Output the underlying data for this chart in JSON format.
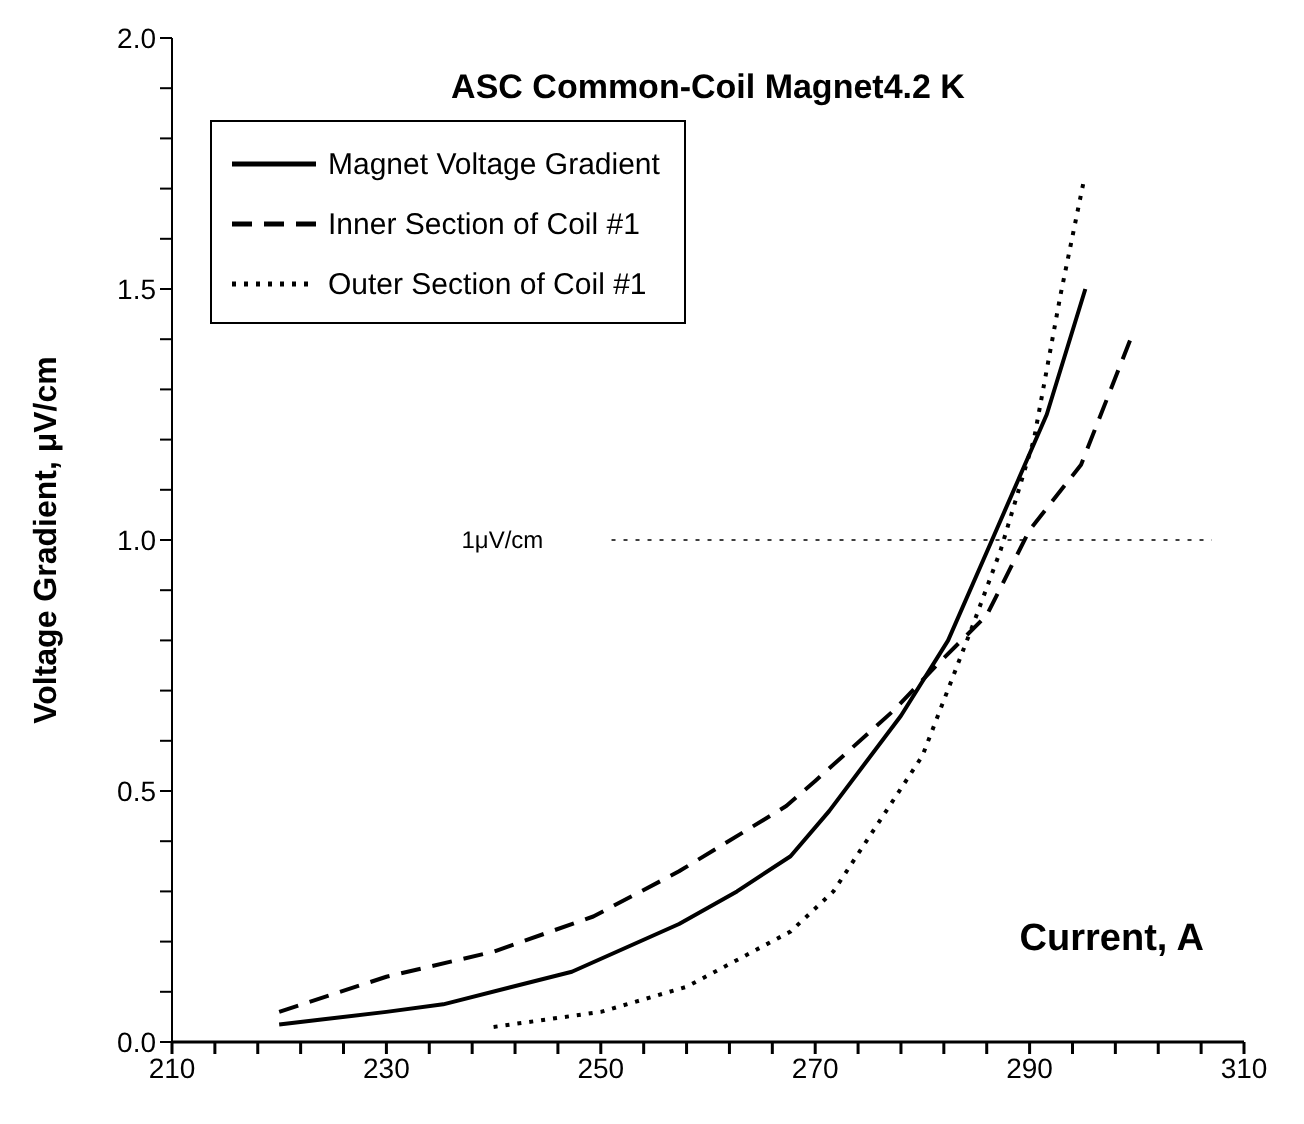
{
  "chart_data": {
    "type": "line",
    "title": "ASC Common-Coil Magnet4.2 K",
    "xlabel": "Current, A",
    "ylabel": "Voltage Gradient, μV/cm",
    "xlim": [
      210,
      310
    ],
    "xticks": [
      210,
      {
        "value": 214,
        "label": null
      },
      {
        "value": 218,
        "label": null
      },
      {
        "value": 222,
        "label": null
      },
      {
        "value": 226,
        "label": null
      },
      230,
      {
        "value": 234,
        "label": null
      },
      {
        "value": 238,
        "label": null
      },
      {
        "value": 242,
        "label": null
      },
      {
        "value": 246,
        "label": null
      },
      250,
      {
        "value": 254,
        "label": null
      },
      {
        "value": 258,
        "label": null
      },
      {
        "value": 262,
        "label": null
      },
      {
        "value": 266,
        "label": null
      },
      270,
      {
        "value": 274,
        "label": null
      },
      {
        "value": 278,
        "label": null
      },
      {
        "value": 282,
        "label": null
      },
      {
        "value": 286,
        "label": null
      },
      290,
      {
        "value": 294,
        "label": null
      },
      {
        "value": 298,
        "label": null
      },
      {
        "value": 302,
        "label": null
      },
      {
        "value": 306,
        "label": null
      },
      310
    ],
    "ylim": [
      0,
      2
    ],
    "yticks": [
      {
        "value": 0,
        "label": "0.0"
      },
      {
        "value": 0.1,
        "label": null
      },
      {
        "value": 0.2,
        "label": null
      },
      {
        "value": 0.3,
        "label": null
      },
      {
        "value": 0.4,
        "label": null
      },
      0.5,
      {
        "value": 0.6,
        "label": null
      },
      {
        "value": 0.7,
        "label": null
      },
      {
        "value": 0.8,
        "label": null
      },
      {
        "value": 0.9,
        "label": null
      },
      {
        "value": 1,
        "label": "1.0"
      },
      {
        "value": 1.1,
        "label": null
      },
      {
        "value": 1.2,
        "label": null
      },
      {
        "value": 1.3,
        "label": null
      },
      {
        "value": 1.4,
        "label": null
      },
      1.5,
      {
        "value": 1.6,
        "label": null
      },
      {
        "value": 1.7,
        "label": null
      },
      {
        "value": 1.8,
        "label": null
      },
      {
        "value": 1.9,
        "label": null
      },
      {
        "value": 2,
        "label": "2.0"
      }
    ],
    "grid": false,
    "legend": "top left",
    "marker": "none",
    "ref_lines": [
      {
        "axis": "y",
        "value": 1,
        "label": "1μV/cm",
        "line_style": "dotted"
      }
    ],
    "series": [
      {
        "name": "Magnet Voltage Gradient",
        "color": "#000000",
        "line_style": "solid",
        "x": [
          220,
          230,
          235.3,
          247.3,
          257.3,
          262.7,
          267.7,
          271.3,
          278,
          282.4,
          286.7,
          291.6,
          295.2
        ],
        "values": [
          0.035,
          0.06,
          0.075,
          0.14,
          0.235,
          0.3,
          0.37,
          0.46,
          0.65,
          0.8,
          1.01,
          1.25,
          1.5
        ]
      },
      {
        "name": "Inner Section of Coil #1",
        "color": "#000000",
        "line_style": "dashed",
        "x": [
          220,
          230,
          240,
          249.3,
          257.3,
          267.3,
          270,
          277.3,
          281.3,
          286,
          290,
          294.8,
          299.6
        ],
        "values": [
          0.06,
          0.13,
          0.18,
          0.25,
          0.34,
          0.47,
          0.52,
          0.66,
          0.75,
          0.85,
          1.02,
          1.15,
          1.41
        ]
      },
      {
        "name": "Outer Section of Coil #1",
        "color": "#000000",
        "line_style": "dotted",
        "x": [
          240,
          250,
          258,
          267.7,
          271.7,
          280,
          284.7,
          287.3,
          290.4,
          292.9,
          295.1
        ],
        "values": [
          0.03,
          0.06,
          0.11,
          0.22,
          0.3,
          0.57,
          0.83,
          0.98,
          1.2,
          1.49,
          1.72
        ]
      }
    ]
  }
}
